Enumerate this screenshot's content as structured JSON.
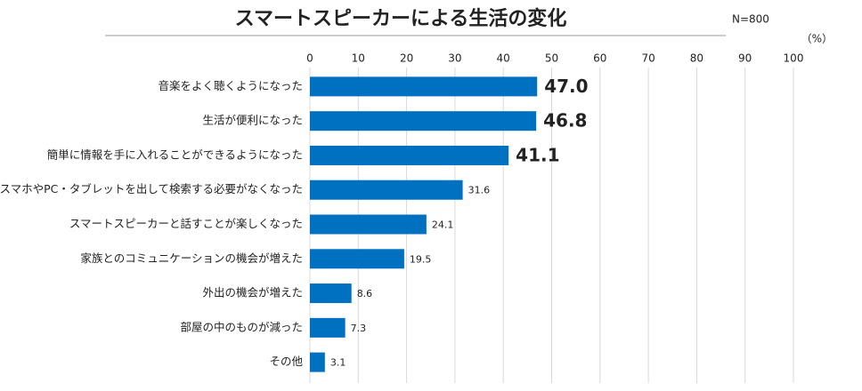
{
  "chart_data": {
    "type": "bar",
    "orientation": "horizontal",
    "title": "スマートスピーカーによる生活の変化",
    "subtitle": "N=800",
    "unit_label": "（%）",
    "categories": [
      "音楽をよく聴くようになった",
      "生活が便利になった",
      "簡単に情報を手に入れることができるようになった",
      "スマホやPC・タブレットを出して検索する必要がなくなった",
      "スマートスピーカーと話すことが楽しくなった",
      "家族とのコミュニケーションの機会が増えた",
      "外出の機会が増えた",
      "部屋の中のものが減った",
      "その他"
    ],
    "values": [
      47.0,
      46.8,
      41.1,
      31.6,
      24.1,
      19.5,
      8.6,
      7.3,
      3.1
    ],
    "value_labels": [
      "47.0",
      "46.8",
      "41.1",
      "31.6",
      "24.1",
      "19.5",
      "8.6",
      "7.3",
      "3.1"
    ],
    "color": "#0070c0",
    "xlim": [
      0,
      100
    ],
    "xticks": [
      0,
      10,
      20,
      30,
      40,
      50,
      60,
      70,
      80,
      90,
      100
    ],
    "grid": true
  }
}
